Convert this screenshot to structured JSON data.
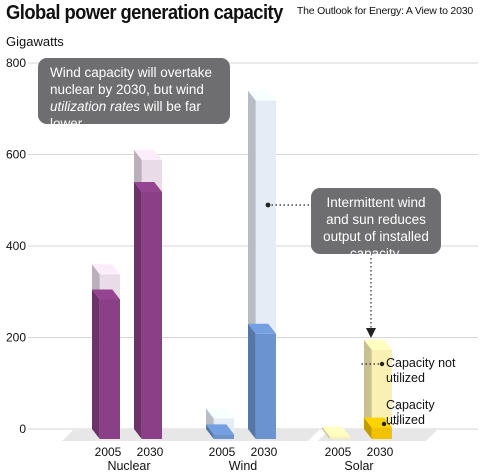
{
  "header": {
    "title": "Global power generation capacity",
    "source": "The Outlook for Energy: A View to 2030",
    "unit": "Gigawatts"
  },
  "callouts": {
    "wind_vs_nuclear_line1": "Wind capacity will overtake",
    "wind_vs_nuclear_line2": "nuclear by 2030, but wind",
    "wind_vs_nuclear_italic": "utilization rates",
    "wind_vs_nuclear_line3_end": " will be far lower.",
    "intermittent": "Intermittent wind and sun reduces output of installed capacity."
  },
  "annotations": {
    "not_utilized": "Capacity not utilized",
    "utilized": "Capacity utilized"
  },
  "colors": {
    "nuclear_dark": "#8a3f86",
    "nuclear_light": "#e9dbe8",
    "wind_dark": "#6b93cf",
    "wind_light": "#e6ecf6",
    "solar_dark": "#f2c200",
    "solar_light": "#fbf0b4",
    "callout_bg": "#6e6e70"
  },
  "chart_data": {
    "type": "bar",
    "title": "Global power generation capacity",
    "ylabel": "Gigawatts",
    "ylim": [
      0,
      800
    ],
    "yticks": [
      0,
      200,
      400,
      600,
      800
    ],
    "groups": [
      "Nuclear",
      "Wind",
      "Solar"
    ],
    "years": [
      "2005",
      "2030"
    ],
    "series": [
      {
        "name": "Capacity utilized",
        "values": {
          "Nuclear": [
            305,
            540
          ],
          "Wind": [
            10,
            230
          ],
          "Solar": [
            0,
            25
          ]
        }
      },
      {
        "name": "Capacity not utilized",
        "values": {
          "Nuclear": [
            55,
            70
          ],
          "Wind": [
            35,
            510
          ],
          "Solar": [
            5,
            170
          ]
        }
      }
    ],
    "totals": {
      "Nuclear": [
        360,
        610
      ],
      "Wind": [
        45,
        740
      ],
      "Solar": [
        5,
        195
      ]
    }
  }
}
